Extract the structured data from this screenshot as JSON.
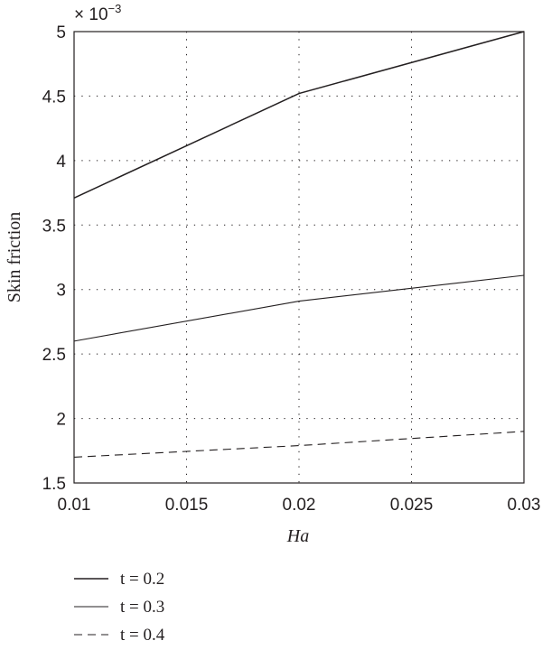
{
  "chart_data": {
    "type": "line",
    "title": "",
    "xlabel": "Ha",
    "ylabel": "Skin friction",
    "y_scale_label": "× 10",
    "y_scale_exponent": "−3",
    "xlim": [
      0.01,
      0.03
    ],
    "ylim": [
      1.5,
      5
    ],
    "x_ticks": [
      "0.01",
      "0.015",
      "0.02",
      "0.025",
      "0.03"
    ],
    "y_ticks": [
      "1.5",
      "2",
      "2.5",
      "3",
      "3.5",
      "4",
      "4.5",
      "5"
    ],
    "x_tick_values": [
      0.01,
      0.015,
      0.02,
      0.025,
      0.03
    ],
    "y_tick_values": [
      1.5,
      2,
      2.5,
      3,
      3.5,
      4,
      4.5,
      5
    ],
    "grid": "dotted",
    "legend_position": "bottom-left, below plot",
    "x": [
      0.01,
      0.02,
      0.03
    ],
    "series": [
      {
        "name": "t = 0.2",
        "values": [
          3.71,
          4.52,
          5.0
        ],
        "style": "solid",
        "width": "medium"
      },
      {
        "name": "t = 0.3",
        "values": [
          2.6,
          2.91,
          3.11
        ],
        "style": "solid",
        "width": "thin"
      },
      {
        "name": "t = 0.4",
        "values": [
          1.7,
          1.79,
          1.9
        ],
        "style": "dashed",
        "width": "thin"
      }
    ],
    "line_color": "#231f20"
  }
}
